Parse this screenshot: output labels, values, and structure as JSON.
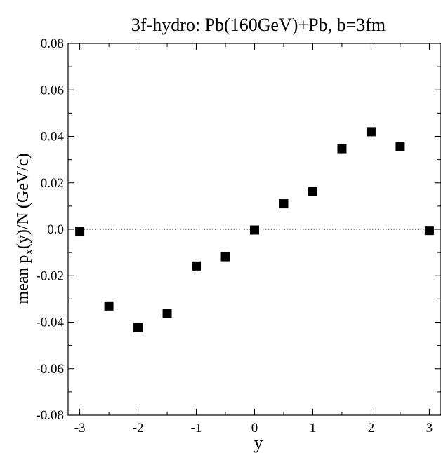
{
  "chart_data": {
    "type": "scatter",
    "title": "3f-hydro: Pb(160GeV)+Pb, b=3fm",
    "xlabel": "y",
    "ylabel_main": "mean p",
    "ylabel_sub": "x",
    "ylabel_tail": "(y)/N (GeV/c)",
    "xlim": [
      -3.2,
      3.2
    ],
    "ylim": [
      -0.08,
      0.08
    ],
    "x_ticks": [
      -3,
      -2,
      -1,
      0,
      1,
      2,
      3
    ],
    "x_tick_labels": [
      "-3",
      "-2",
      "-1",
      "0",
      "1",
      "2",
      "3"
    ],
    "y_ticks": [
      -0.08,
      -0.06,
      -0.04,
      -0.02,
      0.0,
      0.02,
      0.04,
      0.06,
      0.08
    ],
    "y_tick_labels": [
      "-0.08",
      "-0.06",
      "-0.04",
      "-0.02",
      "0.0",
      "0.02",
      "0.04",
      "0.06",
      "0.08"
    ],
    "reference_line": 0.0,
    "grid": false,
    "marker": "filled-square",
    "marker_color": "#000000",
    "series": [
      {
        "x": [
          -3,
          -2.5,
          -2,
          -1.5,
          -1,
          -0.5,
          0,
          0.5,
          1,
          1.5,
          2,
          2.5,
          3
        ],
        "y": [
          -0.0008,
          -0.033,
          -0.0423,
          -0.0362,
          -0.0158,
          -0.0118,
          -0.0003,
          0.011,
          0.0162,
          0.0347,
          0.042,
          0.0355,
          -0.0005
        ]
      }
    ]
  }
}
